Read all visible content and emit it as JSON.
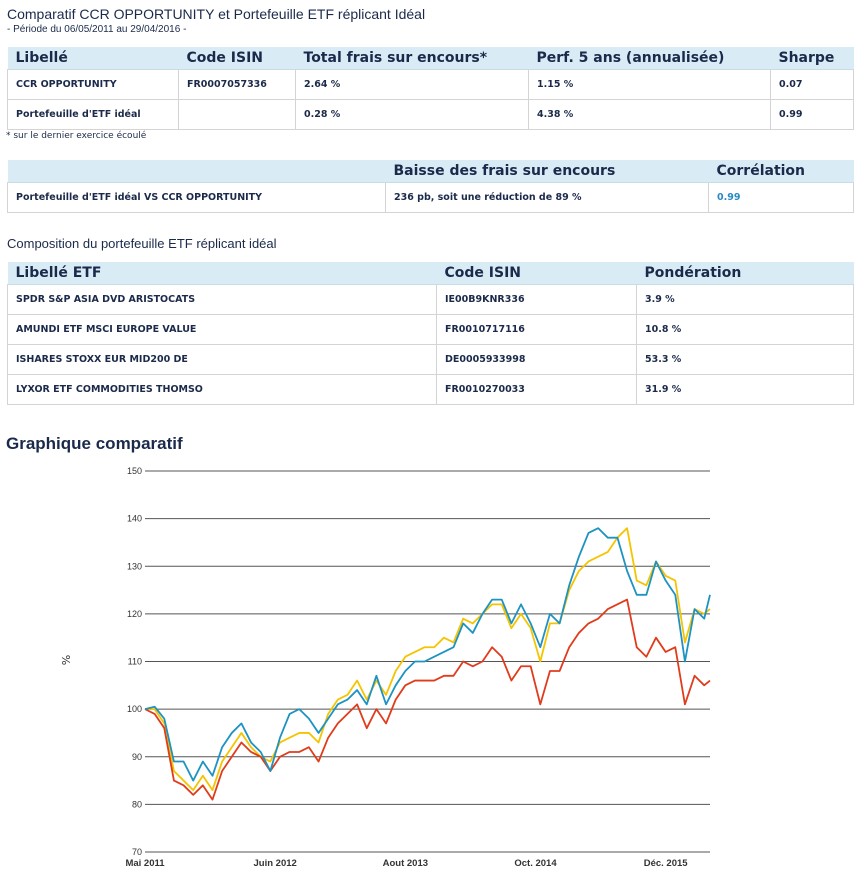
{
  "title": "Comparatif CCR OPPORTUNITY et Portefeuille ETF réplicant Idéal",
  "period": "- Période du 06/05/2011 au 29/04/2016 -",
  "table1": {
    "headers": [
      "Libellé",
      "Code ISIN",
      "Total frais sur encours*",
      "Perf. 5 ans (annualisée)",
      "Sharpe"
    ],
    "rows": [
      [
        "CCR OPPORTUNITY",
        "FR0007057336",
        "2.64 %",
        "1.15 %",
        "0.07"
      ],
      [
        "Portefeuille d'ETF idéal",
        "",
        "0.28 %",
        "4.38 %",
        "0.99"
      ]
    ]
  },
  "note": "* sur le dernier exercice écoulé",
  "table2": {
    "headers": [
      "",
      "Baisse des frais sur encours",
      "Corrélation"
    ],
    "rows": [
      [
        "Portefeuille d'ETF idéal VS CCR OPPORTUNITY",
        "236 pb, soit une réduction de 89 %",
        "0.99"
      ]
    ]
  },
  "composition_title": "Composition du portefeuille ETF réplicant idéal",
  "table3": {
    "headers": [
      "Libellé ETF",
      "Code ISIN",
      "Pondération"
    ],
    "rows": [
      [
        "SPDR S&P ASIA DVD ARISTOCATS",
        "IE00B9KNR336",
        "3.9 %"
      ],
      [
        "AMUNDI ETF MSCI EUROPE VALUE",
        "FR0010717116",
        "10.8 %"
      ],
      [
        "ISHARES STOXX EUR MID200 DE",
        "DE0005933998",
        "53.3 %"
      ],
      [
        "LYXOR ETF COMMODITIES THOMSO",
        "FR0010270033",
        "31.9 %"
      ]
    ]
  },
  "chart_title": "Graphique comparatif",
  "chart_data": {
    "type": "line",
    "ylabel": "%",
    "ylim": [
      70,
      150
    ],
    "yticks": [
      70,
      80,
      90,
      100,
      110,
      120,
      130,
      140,
      150
    ],
    "xlabel": "",
    "xunit": "months since May 2011",
    "xlim": [
      0,
      58.6
    ],
    "xticks": [
      {
        "x": 0,
        "label": "Mai 2011"
      },
      {
        "x": 13.5,
        "label": "Juin 2012"
      },
      {
        "x": 27,
        "label": "Aout 2013"
      },
      {
        "x": 40.5,
        "label": "Oct. 2014"
      },
      {
        "x": 54,
        "label": "Déc. 2015"
      }
    ],
    "grid": true,
    "x": [
      0,
      1,
      2,
      3,
      4,
      5,
      6,
      7,
      8,
      9,
      10,
      11,
      12,
      13,
      14,
      15,
      16,
      17,
      18,
      19,
      20,
      21,
      22,
      23,
      24,
      25,
      26,
      27,
      28,
      29,
      30,
      31,
      32,
      33,
      34,
      35,
      36,
      37,
      38,
      39,
      40,
      41,
      42,
      43,
      44,
      45,
      46,
      47,
      48,
      49,
      50,
      51,
      52,
      53,
      54,
      55,
      56,
      57,
      58,
      58.6
    ],
    "series": [
      {
        "color": "#f5c400",
        "values": [
          100,
          100,
          97,
          87,
          85,
          83,
          86,
          83,
          89,
          92,
          95,
          92,
          90,
          89,
          93,
          94,
          95,
          95,
          93,
          99,
          102,
          103,
          106,
          102,
          106,
          103,
          108,
          111,
          112,
          113,
          113,
          115,
          114,
          119,
          118,
          120,
          122,
          122,
          117,
          120,
          117,
          110,
          118,
          118,
          125,
          129,
          131,
          132,
          133,
          136,
          138,
          127,
          126,
          131,
          128,
          127,
          114,
          121,
          120,
          121
        ]
      },
      {
        "color": "#e03c1c",
        "values": [
          100,
          99,
          96,
          85,
          84,
          82,
          84,
          81,
          87,
          90,
          93,
          91,
          90,
          87,
          90,
          91,
          91,
          92,
          89,
          94,
          97,
          99,
          101,
          96,
          100,
          97,
          102,
          105,
          106,
          106,
          106,
          107,
          107,
          110,
          109,
          110,
          113,
          111,
          106,
          109,
          109,
          101,
          108,
          108,
          113,
          116,
          118,
          119,
          121,
          122,
          123,
          113,
          111,
          115,
          112,
          113,
          101,
          107,
          105,
          106
        ]
      },
      {
        "color": "#1e93c2",
        "values": [
          100,
          100.5,
          98,
          89,
          89,
          85,
          89,
          86,
          92,
          95,
          97,
          93,
          91,
          87,
          94,
          99,
          100,
          98,
          95,
          98,
          101,
          102,
          104,
          101,
          107,
          101,
          105,
          108,
          110,
          110,
          111,
          112,
          113,
          118,
          116,
          120,
          123,
          123,
          118,
          122,
          118,
          113,
          120,
          118,
          126,
          132,
          137,
          138,
          136,
          136,
          129,
          124,
          124,
          131,
          127,
          124,
          110,
          121,
          119,
          124
        ]
      }
    ]
  }
}
